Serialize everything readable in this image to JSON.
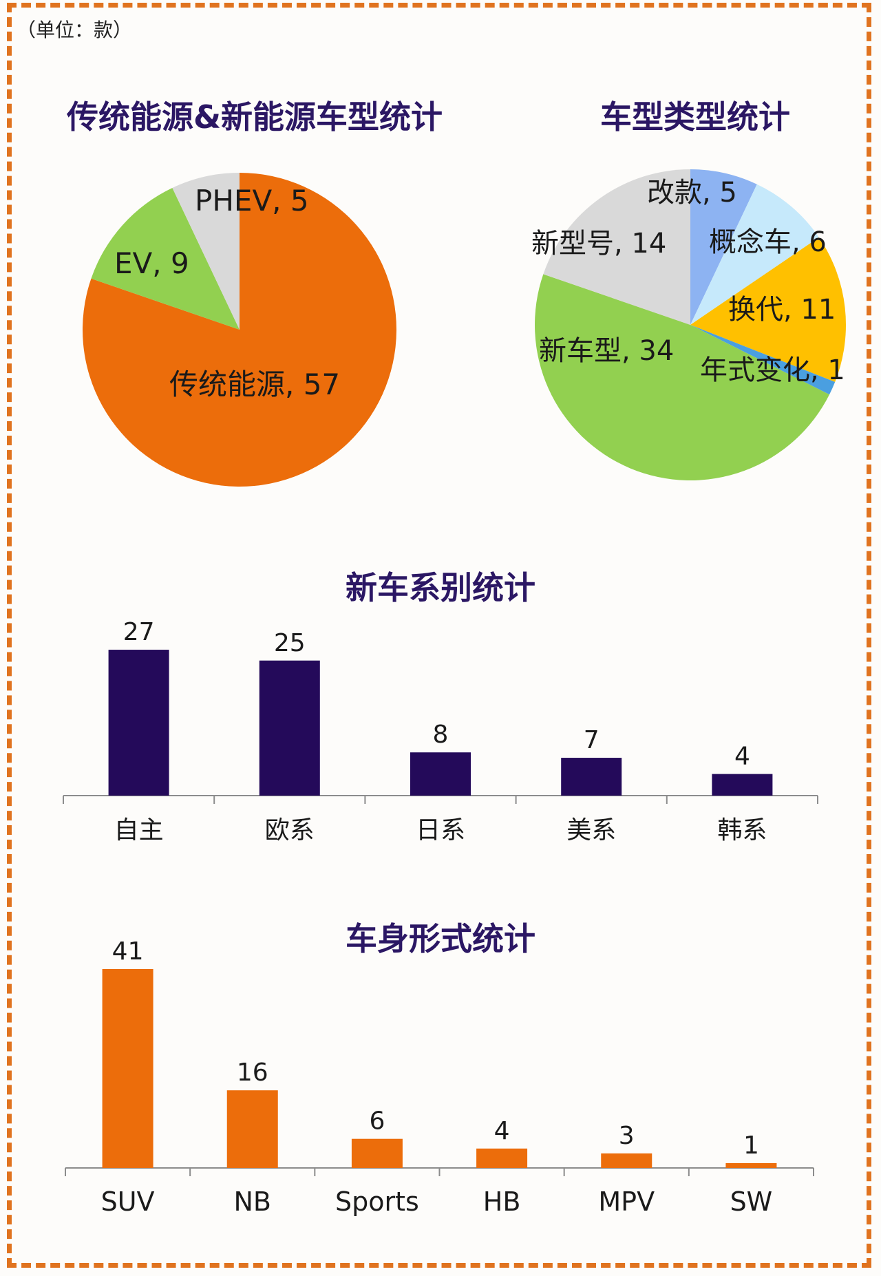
{
  "unit_label": "（单位：款）",
  "chart_data": [
    {
      "type": "pie",
      "title": "传统能源&新能源车型统计",
      "slices": [
        {
          "label": "传统能源",
          "value": 57,
          "color": "#ec6d0b"
        },
        {
          "label": "EV",
          "value": 9,
          "color": "#92d050"
        },
        {
          "label": "PHEV",
          "value": 5,
          "color": "#d9d9d9"
        }
      ]
    },
    {
      "type": "pie",
      "title": "车型类型统计",
      "slices": [
        {
          "label": "改款",
          "value": 5,
          "color": "#8db3f2"
        },
        {
          "label": "概念车",
          "value": 6,
          "color": "#c6e9fb"
        },
        {
          "label": "换代",
          "value": 11,
          "color": "#ffc000"
        },
        {
          "label": "年式变化",
          "value": 1,
          "color": "#4a9fe0"
        },
        {
          "label": "新车型",
          "value": 34,
          "color": "#92d050"
        },
        {
          "label": "新型号",
          "value": 14,
          "color": "#d9d9d9"
        }
      ]
    },
    {
      "type": "bar",
      "title": "新车系别统计",
      "categories": [
        "自主",
        "欧系",
        "日系",
        "美系",
        "韩系"
      ],
      "values": [
        27,
        25,
        8,
        7,
        4
      ],
      "color": "#240a5a"
    },
    {
      "type": "bar",
      "title": "车身形式统计",
      "categories": [
        "SUV",
        "NB",
        "Sports",
        "HB",
        "MPV",
        "SW"
      ],
      "values": [
        41,
        16,
        6,
        4,
        3,
        1
      ],
      "color": "#ec6d0b"
    }
  ]
}
